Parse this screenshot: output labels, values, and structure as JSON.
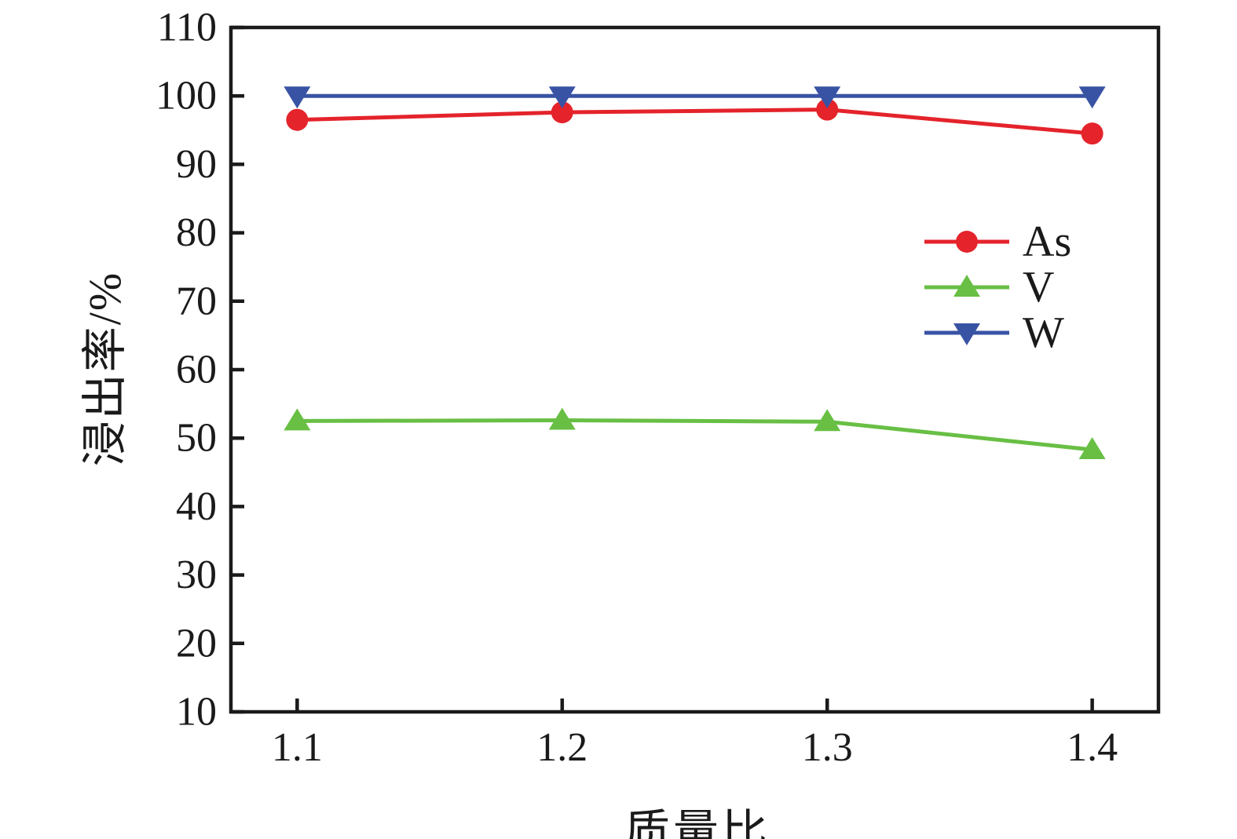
{
  "figure": {
    "background": "#ffffff",
    "axis_color": "#1a1a1a"
  },
  "chart_data": {
    "type": "line",
    "title": "",
    "xlabel": "质量比",
    "ylabel": "浸出率/%",
    "x": [
      1.1,
      1.2,
      1.3,
      1.4
    ],
    "x_tick_labels": [
      "1.1",
      "1.2",
      "1.3",
      "1.4"
    ],
    "y_ticks": [
      10,
      20,
      30,
      40,
      50,
      60,
      70,
      80,
      90,
      100,
      110
    ],
    "y_tick_labels": [
      "10",
      "20",
      "30",
      "40",
      "50",
      "60",
      "70",
      "80",
      "90",
      "100",
      "110"
    ],
    "xlim": [
      1.075,
      1.425
    ],
    "ylim": [
      10,
      110
    ],
    "grid": false,
    "frame": "box",
    "legend_position": "center-right",
    "series": [
      {
        "name": "As",
        "color": "#e4232b",
        "marker": "circle",
        "values": [
          96.5,
          97.6,
          98.0,
          94.5
        ]
      },
      {
        "name": "V",
        "color": "#68bf44",
        "marker": "triangle-up",
        "values": [
          52.5,
          52.6,
          52.4,
          48.3
        ]
      },
      {
        "name": "W",
        "color": "#3953a4",
        "marker": "triangle-down",
        "values": [
          100,
          100,
          100,
          100
        ]
      }
    ]
  }
}
